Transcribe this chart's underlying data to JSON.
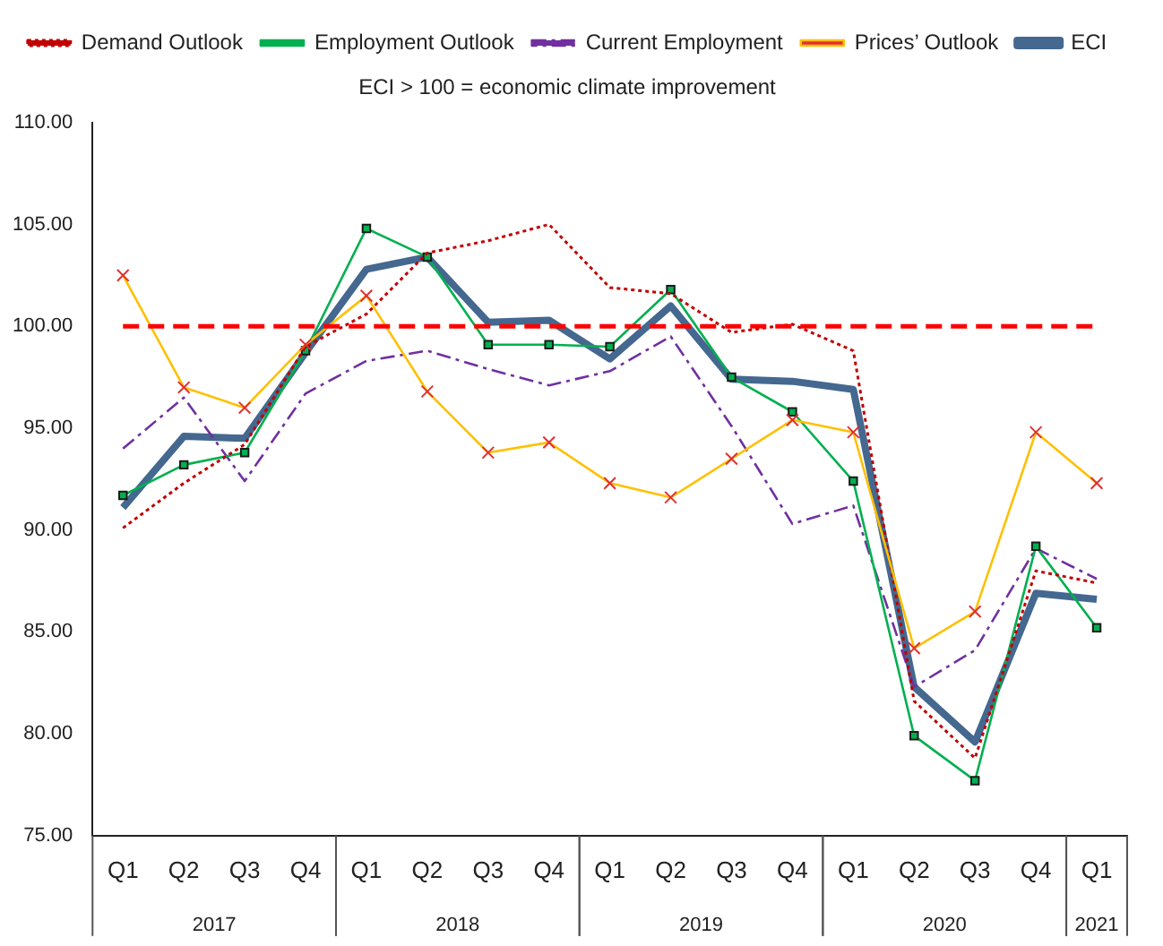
{
  "chart_data": {
    "type": "line",
    "subtitle": "ECI > 100 = economic climate improvement",
    "categories": [
      "Q1",
      "Q2",
      "Q3",
      "Q4",
      "Q1",
      "Q2",
      "Q3",
      "Q4",
      "Q1",
      "Q2",
      "Q3",
      "Q4",
      "Q1",
      "Q2",
      "Q3",
      "Q4",
      "Q1"
    ],
    "annotations": [
      "2017",
      "2018",
      "2019",
      "2020",
      "2021"
    ],
    "series": [
      {
        "name": "Demand Outlook",
        "color": "#c00000",
        "line_style": "dotted",
        "marker": "none",
        "values": [
          90.1,
          92.3,
          94.2,
          99.0,
          100.6,
          103.6,
          104.2,
          105.0,
          101.9,
          101.6,
          99.7,
          100.1,
          98.8,
          81.6,
          78.8,
          88.0,
          87.4
        ]
      },
      {
        "name": "Employment Outlook",
        "color": "#00b050",
        "line_style": "solid",
        "marker": "square",
        "values": [
          91.7,
          93.2,
          93.8,
          98.8,
          104.8,
          103.4,
          99.1,
          99.1,
          99.0,
          101.8,
          97.5,
          95.8,
          92.4,
          79.9,
          77.7,
          89.2,
          85.2
        ]
      },
      {
        "name": "Current Employment",
        "color": "#7030a0",
        "line_style": "dashed",
        "marker": "none",
        "values": [
          94.0,
          96.5,
          92.4,
          96.7,
          98.3,
          98.8,
          97.9,
          97.1,
          97.8,
          99.5,
          95.1,
          90.3,
          91.2,
          82.3,
          84.1,
          89.1,
          87.6
        ]
      },
      {
        "name": "Prices’ Outlook",
        "color": "#ffc000",
        "line_style": "solid",
        "marker": "cross",
        "values": [
          102.5,
          97.0,
          96.0,
          99.1,
          101.5,
          96.8,
          93.8,
          94.3,
          92.3,
          91.6,
          93.5,
          95.4,
          94.8,
          84.2,
          86.0,
          94.8,
          92.3
        ]
      },
      {
        "name": "ECI",
        "color": "#44688f",
        "line_style": "solid",
        "marker": "none",
        "values": [
          91.1,
          94.6,
          94.5,
          98.7,
          102.8,
          103.4,
          100.2,
          100.3,
          98.4,
          101.0,
          97.4,
          97.3,
          96.9,
          82.3,
          79.6,
          86.9,
          86.6
        ]
      }
    ],
    "ref_lines": [
      {
        "axis": "y",
        "value": 100,
        "color": "#ff0000",
        "line_style": "dashed"
      }
    ],
    "ylim": [
      75,
      110
    ],
    "yticks": [
      {
        "value": 75,
        "label": "75.00"
      },
      {
        "value": 80,
        "label": "80.00"
      },
      {
        "value": 85,
        "label": "85.00"
      },
      {
        "value": 90,
        "label": "90.00"
      },
      {
        "value": 95,
        "label": "95.00"
      },
      {
        "value": 100,
        "label": "100.00"
      },
      {
        "value": 105,
        "label": "105.00"
      },
      {
        "value": 110,
        "label": "110.00"
      }
    ],
    "grid": false,
    "legend": "top"
  }
}
